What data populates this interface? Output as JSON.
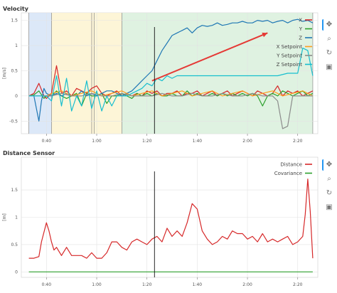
{
  "panels": [
    {
      "title": "Velocity",
      "ylabel": "[m/s]",
      "ylim": [
        -0.75,
        1.65
      ],
      "xlim": [
        30,
        148
      ],
      "yticks": [
        -0.5,
        0,
        0.5,
        1,
        1.5
      ],
      "ytick_labels": [
        "-0.5",
        "0",
        "0.5",
        "1",
        "1.5"
      ],
      "xticks": [
        40,
        60,
        80,
        100,
        120,
        140
      ],
      "xtick_labels": [
        "0:40",
        "1:00",
        "1:20",
        "1:40",
        "2:00",
        "2:20"
      ],
      "legend": [
        "X",
        "Y",
        "Z",
        "X Setpoint",
        "Y Setpoint",
        "Z Setpoint"
      ]
    },
    {
      "title": "Distance Sensor",
      "ylabel": "[m]",
      "ylim": [
        -0.1,
        2.1
      ],
      "xlim": [
        30,
        148
      ],
      "yticks": [
        0,
        0.5,
        1,
        1.5
      ],
      "ytick_labels": [
        "0",
        "0.5",
        "1",
        "1.5"
      ],
      "xticks": [
        40,
        60,
        80,
        100,
        120,
        140
      ],
      "xtick_labels": [
        "0:40",
        "1:00",
        "1:20",
        "1:40",
        "2:00",
        "2:20"
      ],
      "legend": [
        "Distance",
        "Covariance"
      ]
    }
  ],
  "toolbar": {
    "pan_icon": "pan-icon",
    "box_zoom_icon": "box-zoom-icon",
    "reset_icon": "reset-icon",
    "save_icon": "save-icon"
  },
  "colors": {
    "x": "#d62728",
    "y": "#2ca02c",
    "z": "#1f77b4",
    "x_sp": "#ff9f1c",
    "y_sp": "#8c8c8c",
    "z_sp": "#17becf",
    "distance": "#d62728",
    "covariance": "#2ca02c",
    "region_blue": "#d6e4f7",
    "region_yellow": "#fdf3d0",
    "region_green": "#d9f0dc"
  },
  "chart_data": [
    {
      "type": "line",
      "title": "Velocity",
      "ylabel": "[m/s]",
      "xlabel": "",
      "x_units": "seconds (mm:ss labels)",
      "regions": [
        {
          "x0": 33,
          "x1": 42,
          "color": "#d6e4f7"
        },
        {
          "x0": 42,
          "x1": 58,
          "color": "#fdf3d0"
        },
        {
          "x0": 58,
          "x1": 70,
          "color": "#fdf3d0"
        },
        {
          "x0": 70,
          "x1": 146,
          "color": "#d9f0dc"
        }
      ],
      "region_boundaries": [
        33,
        42,
        58,
        59,
        70,
        146
      ],
      "cursor_x": 83,
      "series": [
        {
          "name": "X",
          "color": "#d62728",
          "x": [
            33,
            35,
            37,
            39,
            40,
            42,
            44,
            46,
            48,
            50,
            52,
            54,
            56,
            58,
            60,
            62,
            64,
            66,
            68,
            70,
            72,
            74,
            76,
            78,
            80,
            82,
            84,
            86,
            88,
            90,
            92,
            94,
            96,
            98,
            100,
            102,
            104,
            106,
            108,
            110,
            112,
            114,
            116,
            118,
            120,
            122,
            124,
            126,
            128,
            130,
            132,
            134,
            136,
            138,
            140,
            142,
            144,
            146
          ],
          "y": [
            0.0,
            0.05,
            0.25,
            0.0,
            -0.05,
            0.05,
            0.6,
            0.05,
            0.1,
            0.0,
            0.15,
            0.1,
            0.05,
            0.15,
            0.2,
            0.05,
            0.0,
            0.05,
            0.1,
            0.0,
            0.05,
            0.0,
            0.05,
            0.0,
            0.1,
            0.05,
            0.1,
            0.0,
            0.05,
            0.05,
            0.1,
            0.0,
            0.05,
            0.05,
            0.1,
            0.0,
            0.05,
            0.1,
            0.0,
            0.05,
            0.1,
            0.0,
            0.05,
            0.1,
            0.05,
            0.0,
            0.1,
            0.05,
            0.0,
            0.05,
            0.2,
            0.0,
            0.1,
            0.05,
            0.1,
            0.0,
            0.05,
            0.1
          ]
        },
        {
          "name": "Y",
          "color": "#2ca02c",
          "x": [
            33,
            35,
            37,
            39,
            40,
            42,
            44,
            46,
            48,
            50,
            52,
            54,
            56,
            58,
            60,
            62,
            64,
            66,
            68,
            70,
            72,
            74,
            76,
            78,
            80,
            82,
            84,
            86,
            88,
            90,
            92,
            94,
            96,
            98,
            100,
            102,
            104,
            106,
            108,
            110,
            112,
            114,
            116,
            118,
            120,
            122,
            124,
            126,
            128,
            130,
            132,
            134,
            136,
            138,
            140,
            142,
            144,
            146
          ],
          "y": [
            0.0,
            0.02,
            0.1,
            -0.05,
            0.0,
            0.0,
            0.1,
            0.0,
            -0.05,
            0.0,
            0.05,
            -0.2,
            0.05,
            0.0,
            0.0,
            0.05,
            -0.15,
            0.0,
            0.0,
            0.05,
            0.0,
            -0.05,
            0.05,
            0.0,
            0.05,
            0.0,
            0.05,
            0.0,
            0.0,
            0.05,
            0.0,
            0.0,
            0.1,
            0.0,
            0.05,
            0.0,
            0.0,
            0.05,
            0.0,
            0.05,
            0.0,
            0.05,
            0.0,
            0.05,
            0.0,
            0.05,
            0.0,
            -0.2,
            0.0,
            0.05,
            0.0,
            0.1,
            0.05,
            0.0,
            0.05,
            0.1,
            0.0,
            0.05
          ]
        },
        {
          "name": "Z",
          "color": "#1f77b4",
          "x": [
            33,
            35,
            37,
            38,
            39,
            40,
            42,
            44,
            46,
            48,
            50,
            52,
            54,
            56,
            58,
            60,
            62,
            64,
            66,
            68,
            70,
            72,
            74,
            76,
            78,
            80,
            82,
            84,
            86,
            88,
            90,
            92,
            94,
            96,
            98,
            100,
            102,
            104,
            106,
            108,
            110,
            112,
            114,
            116,
            118,
            120,
            122,
            124,
            126,
            128,
            130,
            132,
            134,
            136,
            138,
            140,
            142,
            144,
            146
          ],
          "y": [
            0.0,
            0.0,
            -0.5,
            -0.1,
            0.15,
            0.05,
            0.0,
            0.05,
            0.0,
            0.05,
            0.0,
            0.0,
            0.1,
            0.0,
            0.05,
            0.0,
            0.05,
            0.1,
            0.1,
            0.05,
            0.0,
            0.05,
            0.1,
            0.2,
            0.3,
            0.4,
            0.5,
            0.7,
            0.9,
            1.05,
            1.2,
            1.25,
            1.3,
            1.35,
            1.25,
            1.35,
            1.4,
            1.38,
            1.4,
            1.45,
            1.4,
            1.42,
            1.45,
            1.45,
            1.48,
            1.45,
            1.45,
            1.5,
            1.48,
            1.5,
            1.45,
            1.48,
            1.5,
            1.45,
            1.5,
            1.52,
            1.48,
            1.5,
            1.45
          ]
        },
        {
          "name": "X Setpoint",
          "color": "#ff9f1c",
          "x": [
            33,
            40,
            42,
            46,
            50,
            54,
            58,
            62,
            66,
            70,
            74,
            78,
            82,
            86,
            90,
            94,
            98,
            102,
            106,
            110,
            114,
            118,
            122,
            126,
            130,
            134,
            138,
            142,
            146
          ],
          "y": [
            0.0,
            0.0,
            0.05,
            0.1,
            0.0,
            0.05,
            0.1,
            0.0,
            0.05,
            0.1,
            0.0,
            0.05,
            0.1,
            0.0,
            0.05,
            0.1,
            0.0,
            0.05,
            0.1,
            0.0,
            0.05,
            0.1,
            0.0,
            0.05,
            0.1,
            0.0,
            0.05,
            0.1,
            0.0
          ]
        },
        {
          "name": "Y Setpoint",
          "color": "#8c8c8c",
          "x": [
            33,
            40,
            42,
            46,
            50,
            54,
            58,
            62,
            66,
            70,
            74,
            78,
            82,
            86,
            90,
            94,
            98,
            102,
            106,
            110,
            114,
            118,
            122,
            126,
            130,
            132,
            134,
            136,
            138,
            142,
            146
          ],
          "y": [
            0.0,
            0.0,
            0.0,
            0.05,
            0.0,
            0.0,
            0.05,
            0.0,
            0.0,
            0.05,
            0.0,
            0.0,
            0.0,
            0.05,
            0.0,
            0.0,
            0.05,
            0.0,
            0.0,
            0.05,
            0.0,
            0.0,
            0.05,
            0.0,
            0.0,
            -0.1,
            -0.65,
            -0.6,
            0.0,
            0.0,
            0.0
          ]
        },
        {
          "name": "Z Setpoint",
          "color": "#17becf",
          "x": [
            33,
            40,
            42,
            44,
            46,
            48,
            50,
            52,
            54,
            56,
            58,
            60,
            62,
            64,
            66,
            68,
            70,
            72,
            74,
            76,
            78,
            80,
            82,
            84,
            86,
            88,
            90,
            92,
            96,
            100,
            104,
            108,
            112,
            116,
            120,
            124,
            128,
            132,
            136,
            140,
            142,
            144,
            146
          ],
          "y": [
            0.0,
            0.0,
            -0.1,
            0.4,
            -0.2,
            0.35,
            -0.3,
            0.0,
            -0.2,
            0.3,
            -0.25,
            0.1,
            -0.3,
            0.0,
            -0.2,
            0.0,
            0.0,
            0.0,
            0.05,
            0.1,
            0.15,
            0.25,
            0.2,
            0.35,
            0.3,
            0.4,
            0.35,
            0.4,
            0.4,
            0.4,
            0.4,
            0.4,
            0.4,
            0.4,
            0.4,
            0.4,
            0.4,
            0.4,
            0.45,
            0.45,
            0.95,
            0.9,
            0.4
          ]
        }
      ],
      "annotation": {
        "type": "arrow",
        "from": [
          82,
          0.3
        ],
        "to": [
          128,
          1.25
        ],
        "color": "#e53935"
      }
    },
    {
      "type": "line",
      "title": "Distance Sensor",
      "ylabel": "[m]",
      "xlabel": "",
      "cursor_x": 83,
      "series": [
        {
          "name": "Distance",
          "color": "#d62728",
          "x": [
            33,
            35,
            37,
            38,
            40,
            41,
            42,
            43,
            44,
            46,
            48,
            50,
            52,
            54,
            56,
            58,
            60,
            62,
            64,
            66,
            68,
            70,
            72,
            74,
            76,
            78,
            80,
            82,
            84,
            86,
            88,
            90,
            92,
            94,
            96,
            98,
            100,
            102,
            104,
            106,
            108,
            110,
            112,
            114,
            116,
            118,
            120,
            122,
            124,
            126,
            128,
            130,
            132,
            134,
            136,
            138,
            140,
            142,
            143,
            144,
            145,
            146
          ],
          "y": [
            0.25,
            0.25,
            0.28,
            0.55,
            0.9,
            0.75,
            0.55,
            0.4,
            0.45,
            0.3,
            0.45,
            0.3,
            0.3,
            0.3,
            0.25,
            0.35,
            0.25,
            0.25,
            0.35,
            0.55,
            0.55,
            0.45,
            0.4,
            0.55,
            0.6,
            0.55,
            0.5,
            0.6,
            0.65,
            0.55,
            0.8,
            0.65,
            0.75,
            0.65,
            0.9,
            1.25,
            1.15,
            0.75,
            0.6,
            0.5,
            0.55,
            0.65,
            0.6,
            0.75,
            0.7,
            0.7,
            0.6,
            0.65,
            0.55,
            0.7,
            0.55,
            0.6,
            0.55,
            0.6,
            0.65,
            0.5,
            0.55,
            0.65,
            1.05,
            1.7,
            1.1,
            0.25
          ]
        },
        {
          "name": "Covariance",
          "color": "#2ca02c",
          "x": [
            33,
            146
          ],
          "y": [
            0.0,
            0.0
          ]
        }
      ]
    }
  ]
}
